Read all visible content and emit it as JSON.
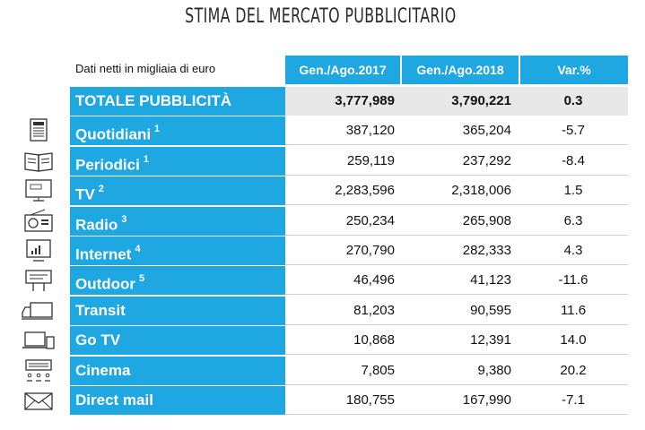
{
  "title": "STIMA DEL MERCATO PUBBLICITARIO",
  "units_note": "Dati netti in migliaia di euro",
  "headers": [
    "Gen./Ago.2017",
    "Gen./Ago.2018",
    "Var.%"
  ],
  "rows": [
    {
      "label": "TOTALE PUBBLICITÀ",
      "sup": "",
      "v2017": "3,777,989",
      "v2018": "3,790,221",
      "var": "0.3",
      "icon": ""
    },
    {
      "label": "Quotidiani",
      "sup": "1",
      "v2017": "387,120",
      "v2018": "365,204",
      "var": "-5.7",
      "icon": "newspaper-icon"
    },
    {
      "label": "Periodici",
      "sup": "1",
      "v2017": "259,119",
      "v2018": "237,292",
      "var": "-8.4",
      "icon": "magazine-icon"
    },
    {
      "label": "TV",
      "sup": "2",
      "v2017": "2,283,596",
      "v2018": "2,318,006",
      "var": "1.5",
      "icon": "tv-icon"
    },
    {
      "label": "Radio",
      "sup": "3",
      "v2017": "250,234",
      "v2018": "265,908",
      "var": "6.3",
      "icon": "radio-icon"
    },
    {
      "label": "Internet",
      "sup": "4",
      "v2017": "270,790",
      "v2018": "282,333",
      "var": "4.3",
      "icon": "monitor-chart-icon"
    },
    {
      "label": "Outdoor",
      "sup": "5",
      "v2017": "46,496",
      "v2018": "41,123",
      "var": "-11.6",
      "icon": "billboard-icon"
    },
    {
      "label": "Transit",
      "sup": "",
      "v2017": "81,203",
      "v2018": "90,595",
      "var": "11.6",
      "icon": "truck-icon"
    },
    {
      "label": "Go TV",
      "sup": "",
      "v2017": "10,868",
      "v2018": "12,391",
      "var": "14.0",
      "icon": "devices-icon"
    },
    {
      "label": "Cinema",
      "sup": "",
      "v2017": "7,805",
      "v2018": "9,380",
      "var": "20.2",
      "icon": "cinema-icon"
    },
    {
      "label": "Direct mail",
      "sup": "",
      "v2017": "180,755",
      "v2018": "167,990",
      "var": "-7.1",
      "icon": "envelope-icon"
    }
  ],
  "colors": {
    "accent": "#1ea7e1",
    "total_bg": "#e8e8e8",
    "divider": "#cfcfcf"
  }
}
